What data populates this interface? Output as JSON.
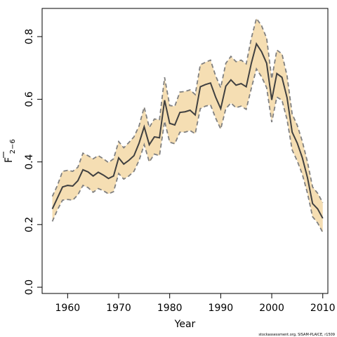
{
  "chart_data": {
    "type": "area",
    "xlabel": "Year",
    "ylabel": "F",
    "ylabel_subscript": "2−6",
    "xlim": [
      1955,
      2011
    ],
    "ylim": [
      -0.02,
      0.89
    ],
    "x_ticks": [
      1960,
      1970,
      1980,
      1990,
      2000,
      2010
    ],
    "y_ticks": [
      0.0,
      0.2,
      0.4,
      0.6,
      0.8
    ],
    "y_tick_labels": [
      "0.0",
      "0.2",
      "0.4",
      "0.6",
      "0.8"
    ],
    "grid": false,
    "colors": {
      "band_fill": "#f5deb3",
      "band_edge": "#808080",
      "line": "#404040",
      "axis": "#000000"
    },
    "x": [
      1957,
      1958,
      1959,
      1960,
      1961,
      1962,
      1963,
      1964,
      1965,
      1966,
      1967,
      1968,
      1969,
      1970,
      1971,
      1972,
      1973,
      1974,
      1975,
      1976,
      1977,
      1978,
      1979,
      1980,
      1981,
      1982,
      1983,
      1984,
      1985,
      1986,
      1987,
      1988,
      1989,
      1990,
      1991,
      1992,
      1993,
      1994,
      1995,
      1996,
      1997,
      1998,
      1999,
      2000,
      2001,
      2002,
      2003,
      2004,
      2005,
      2006,
      2007,
      2008,
      2009,
      2010
    ],
    "series": [
      {
        "role": "estimate",
        "values": [
          0.25,
          0.285,
          0.32,
          0.325,
          0.323,
          0.34,
          0.375,
          0.368,
          0.355,
          0.367,
          0.358,
          0.347,
          0.355,
          0.413,
          0.393,
          0.405,
          0.42,
          0.46,
          0.512,
          0.455,
          0.48,
          0.477,
          0.597,
          0.523,
          0.518,
          0.558,
          0.56,
          0.565,
          0.55,
          0.64,
          0.647,
          0.652,
          0.607,
          0.57,
          0.642,
          0.662,
          0.645,
          0.65,
          0.64,
          0.715,
          0.777,
          0.752,
          0.715,
          0.598,
          0.682,
          0.67,
          0.605,
          0.495,
          0.46,
          0.413,
          0.35,
          0.267,
          0.25,
          0.22
        ]
      },
      {
        "role": "upper",
        "values": [
          0.29,
          0.325,
          0.37,
          0.373,
          0.37,
          0.383,
          0.428,
          0.42,
          0.41,
          0.42,
          0.41,
          0.398,
          0.41,
          0.465,
          0.445,
          0.462,
          0.48,
          0.515,
          0.575,
          0.51,
          0.537,
          0.535,
          0.67,
          0.58,
          0.578,
          0.623,
          0.625,
          0.63,
          0.615,
          0.71,
          0.718,
          0.725,
          0.675,
          0.637,
          0.715,
          0.737,
          0.72,
          0.725,
          0.713,
          0.795,
          0.858,
          0.835,
          0.795,
          0.665,
          0.757,
          0.745,
          0.675,
          0.553,
          0.517,
          0.465,
          0.4,
          0.32,
          0.3,
          0.27
        ]
      },
      {
        "role": "lower",
        "values": [
          0.21,
          0.247,
          0.278,
          0.28,
          0.278,
          0.295,
          0.325,
          0.318,
          0.303,
          0.315,
          0.308,
          0.298,
          0.305,
          0.363,
          0.345,
          0.355,
          0.37,
          0.405,
          0.455,
          0.4,
          0.425,
          0.42,
          0.53,
          0.463,
          0.458,
          0.495,
          0.495,
          0.5,
          0.49,
          0.57,
          0.578,
          0.582,
          0.54,
          0.505,
          0.57,
          0.588,
          0.573,
          0.578,
          0.568,
          0.635,
          0.697,
          0.672,
          0.637,
          0.527,
          0.607,
          0.597,
          0.535,
          0.438,
          0.403,
          0.36,
          0.3,
          0.225,
          0.205,
          0.175
        ]
      }
    ]
  },
  "footer": {
    "credit": "stockassessment.org, SISAM-PLAICE, r1509"
  }
}
